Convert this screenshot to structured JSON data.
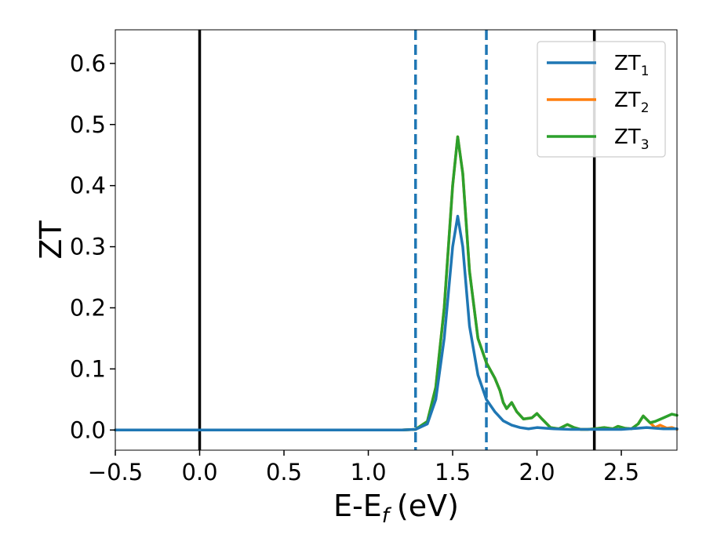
{
  "chart_data": {
    "type": "line",
    "title": "",
    "xlabel": "E-E",
    "xlabel_sub": "f",
    "xlabel_unit": "(eV)",
    "ylabel": "ZT",
    "xlim": [
      -0.5,
      2.83
    ],
    "ylim": [
      -0.033,
      0.655
    ],
    "xticks": [
      -0.5,
      0.0,
      0.5,
      1.0,
      1.5,
      2.0,
      2.5
    ],
    "xtick_labels": [
      "−0.5",
      "0.0",
      "0.5",
      "1.0",
      "1.5",
      "2.0",
      "2.5"
    ],
    "yticks": [
      0.0,
      0.1,
      0.2,
      0.3,
      0.4,
      0.5,
      0.6
    ],
    "ytick_labels": [
      "0.0",
      "0.1",
      "0.2",
      "0.3",
      "0.4",
      "0.5",
      "0.6"
    ],
    "grid": false,
    "legend_position": "top-right",
    "vlines": [
      {
        "x": 0.0,
        "style": "solid",
        "color": "#000000"
      },
      {
        "x": 2.34,
        "style": "solid",
        "color": "#000000"
      },
      {
        "x": 1.28,
        "style": "dashed",
        "color": "#1f77b4"
      },
      {
        "x": 1.7,
        "style": "dashed",
        "color": "#1f77b4"
      }
    ],
    "series": [
      {
        "name": "ZT",
        "name_sub": "1",
        "color": "#1f77b4",
        "x": [
          -0.5,
          1.2,
          1.28,
          1.35,
          1.4,
          1.45,
          1.5,
          1.53,
          1.56,
          1.6,
          1.65,
          1.7,
          1.75,
          1.8,
          1.85,
          1.9,
          1.95,
          2.0,
          2.05,
          2.1,
          2.2,
          2.3,
          2.4,
          2.5,
          2.55,
          2.6,
          2.65,
          2.7,
          2.75,
          2.8,
          2.83
        ],
        "y": [
          0.0,
          0.0,
          0.001,
          0.01,
          0.05,
          0.15,
          0.3,
          0.35,
          0.3,
          0.17,
          0.09,
          0.05,
          0.03,
          0.015,
          0.008,
          0.004,
          0.002,
          0.004,
          0.003,
          0.002,
          0.001,
          0.001,
          0.001,
          0.001,
          0.002,
          0.003,
          0.004,
          0.003,
          0.002,
          0.002,
          0.002
        ]
      },
      {
        "name": "ZT",
        "name_sub": "2",
        "color": "#ff7f0e",
        "x": [
          -0.5,
          1.2,
          1.28,
          1.35,
          1.4,
          1.45,
          1.5,
          1.53,
          1.56,
          1.6,
          1.65,
          1.7,
          1.73,
          1.75,
          1.78,
          1.8,
          1.82,
          1.85,
          1.88,
          1.92,
          1.97,
          2.0,
          2.03,
          2.08,
          2.13,
          2.18,
          2.22,
          2.26,
          2.3,
          2.34,
          2.4,
          2.45,
          2.48,
          2.52,
          2.56,
          2.6,
          2.63,
          2.67,
          2.7,
          2.73,
          2.77,
          2.8,
          2.83
        ],
        "y": [
          0.0,
          0.0,
          0.001,
          0.014,
          0.07,
          0.2,
          0.4,
          0.48,
          0.42,
          0.26,
          0.15,
          0.11,
          0.095,
          0.085,
          0.065,
          0.045,
          0.035,
          0.045,
          0.03,
          0.018,
          0.02,
          0.027,
          0.018,
          0.004,
          0.002,
          0.009,
          0.004,
          0.001,
          0.001,
          0.002,
          0.004,
          0.002,
          0.006,
          0.003,
          0.002,
          0.01,
          0.023,
          0.012,
          0.004,
          0.008,
          0.003,
          0.004,
          0.001
        ]
      },
      {
        "name": "ZT",
        "name_sub": "3",
        "color": "#2ca02c",
        "x": [
          -0.5,
          1.2,
          1.28,
          1.35,
          1.4,
          1.45,
          1.5,
          1.53,
          1.56,
          1.6,
          1.65,
          1.7,
          1.73,
          1.75,
          1.78,
          1.8,
          1.82,
          1.85,
          1.88,
          1.92,
          1.97,
          2.0,
          2.03,
          2.08,
          2.13,
          2.18,
          2.22,
          2.26,
          2.3,
          2.34,
          2.4,
          2.45,
          2.48,
          2.52,
          2.56,
          2.6,
          2.63,
          2.67,
          2.7,
          2.75,
          2.8,
          2.83
        ],
        "y": [
          0.0,
          0.0,
          0.001,
          0.014,
          0.07,
          0.2,
          0.4,
          0.48,
          0.42,
          0.26,
          0.15,
          0.11,
          0.095,
          0.085,
          0.065,
          0.045,
          0.035,
          0.045,
          0.03,
          0.018,
          0.02,
          0.027,
          0.018,
          0.004,
          0.002,
          0.009,
          0.004,
          0.001,
          0.001,
          0.002,
          0.004,
          0.002,
          0.006,
          0.003,
          0.002,
          0.01,
          0.023,
          0.012,
          0.014,
          0.02,
          0.026,
          0.024
        ]
      }
    ]
  }
}
